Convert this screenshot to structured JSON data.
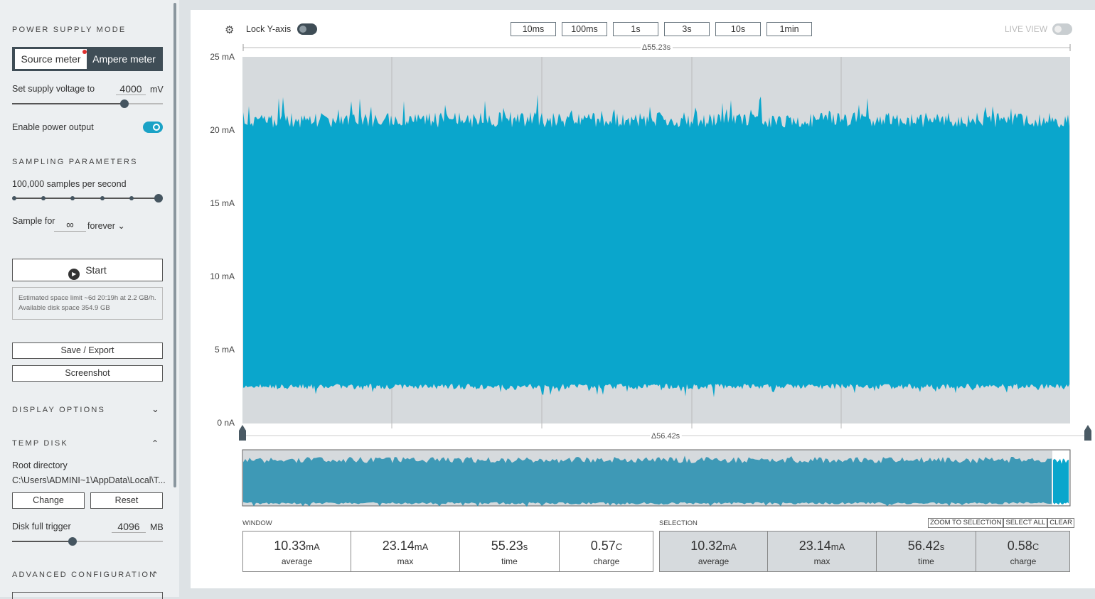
{
  "sidebar": {
    "power_supply_mode": {
      "title": "POWER SUPPLY MODE",
      "options": [
        "Source meter",
        "Ampere meter"
      ]
    },
    "supply_voltage": {
      "label": "Set supply voltage to",
      "value": "4000",
      "unit": "mV"
    },
    "enable_power": "Enable power output",
    "sampling": {
      "title": "SAMPLING PARAMETERS",
      "rate": "100,000 samples per second",
      "sample_for": "Sample for",
      "duration": "∞",
      "duration_unit": "forever"
    },
    "start": "Start",
    "estimate": "Estimated space limit ~6d 20:19h at 2.2 GB/h. Available disk space 354.9 GB",
    "buttons": [
      "Save / Export",
      "Screenshot"
    ],
    "display_options": "DISPLAY OPTIONS",
    "temp_disk": {
      "title": "TEMP DISK",
      "root_label": "Root directory",
      "root_path": "C:\\Users\\ADMINI~1\\AppData\\Local\\T...",
      "buttons": [
        "Change",
        "Reset"
      ],
      "trigger_label": "Disk full trigger",
      "trigger_value": "4096",
      "trigger_unit": "MB"
    },
    "advanced": "ADVANCED CONFIGURATION"
  },
  "toolbar": {
    "lock": "Lock Y-axis",
    "windows": [
      "10ms",
      "100ms",
      "1s",
      "3s",
      "10s",
      "1min"
    ],
    "live": "LIVE VIEW"
  },
  "chart": {
    "window_delta": "Δ55.23s",
    "yticks": [
      "25 mA",
      "20 mA",
      "15 mA",
      "10 mA",
      "5 mA",
      "0 nA"
    ],
    "selection_delta": "Δ56.42s"
  },
  "stats": {
    "window": {
      "title": "WINDOW",
      "items": [
        {
          "value": "10.33",
          "unit": "mA",
          "label": "average"
        },
        {
          "value": "23.14",
          "unit": "mA",
          "label": "max"
        },
        {
          "value": "55.23",
          "unit": "s",
          "label": "time"
        },
        {
          "value": "0.57",
          "unit": "C",
          "label": "charge"
        }
      ]
    },
    "selection": {
      "title": "SELECTION",
      "actions": [
        "ZOOM TO SELECTION",
        "SELECT ALL",
        "CLEAR"
      ],
      "items": [
        {
          "value": "10.32",
          "unit": "mA",
          "label": "average"
        },
        {
          "value": "23.14",
          "unit": "mA",
          "label": "max"
        },
        {
          "value": "56.42",
          "unit": "s",
          "label": "time"
        },
        {
          "value": "0.58",
          "unit": "C",
          "label": "charge"
        }
      ]
    }
  }
}
